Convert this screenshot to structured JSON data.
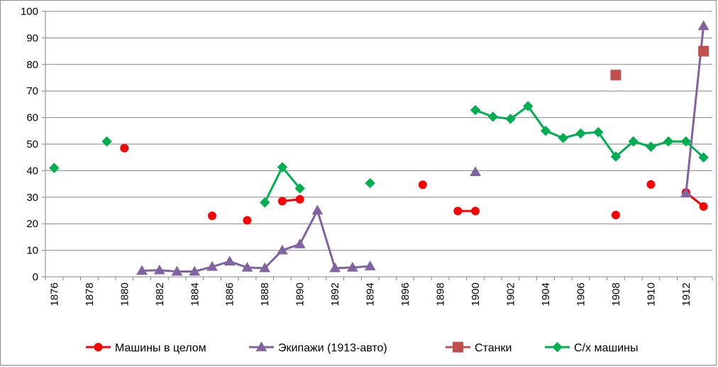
{
  "chart_data": {
    "type": "line",
    "title": "",
    "xlabel": "",
    "ylabel": "",
    "xlim": [
      1876,
      1913
    ],
    "ylim": [
      0,
      100
    ],
    "y_ticks": [
      0,
      10,
      20,
      30,
      40,
      50,
      60,
      70,
      80,
      90,
      100
    ],
    "x_tick_labels": [
      "1876",
      "1878",
      "1880",
      "1882",
      "1884",
      "1886",
      "1888",
      "1890",
      "1892",
      "1894",
      "1896",
      "1898",
      "1900",
      "1902",
      "1904",
      "1906",
      "1908",
      "1910",
      "1912"
    ],
    "grid": "horizontal",
    "legend_position": "bottom",
    "series": [
      {
        "name": "Машины в целом",
        "color": "#ff0000",
        "marker": "circle",
        "points": [
          [
            1880,
            48.5
          ],
          [
            1885,
            23
          ],
          [
            1887,
            21.3
          ],
          [
            1889,
            28.5
          ],
          [
            1890,
            29.2
          ],
          [
            1897,
            34.7
          ],
          [
            1899,
            24.8
          ],
          [
            1900,
            24.8
          ],
          [
            1908,
            23.3
          ],
          [
            1910,
            34.8
          ],
          [
            1912,
            31.8
          ],
          [
            1913,
            26.5
          ]
        ]
      },
      {
        "name": "Экипажи (1913-авто)",
        "color": "#8064a2",
        "marker": "triangle",
        "points": [
          [
            1881,
            2.3
          ],
          [
            1882,
            2.5
          ],
          [
            1883,
            2
          ],
          [
            1884,
            2
          ],
          [
            1885,
            3.8
          ],
          [
            1886,
            5.8
          ],
          [
            1887,
            3.5
          ],
          [
            1888,
            3.3
          ],
          [
            1889,
            10
          ],
          [
            1890,
            12.3
          ],
          [
            1891,
            25
          ],
          [
            1892,
            3.3
          ],
          [
            1893,
            3.5
          ],
          [
            1894,
            4
          ],
          [
            1900,
            39.5
          ],
          [
            1912,
            31.5
          ],
          [
            1913,
            94.5
          ]
        ]
      },
      {
        "name": "Станки",
        "color": "#c0504d",
        "marker": "square",
        "points": [
          [
            1908,
            76
          ],
          [
            1913,
            85
          ]
        ]
      },
      {
        "name": "С/х машины",
        "color": "#00b050",
        "marker": "diamond",
        "points": [
          [
            1876,
            41
          ],
          [
            1879,
            51
          ],
          [
            1888,
            28
          ],
          [
            1889,
            41.3
          ],
          [
            1890,
            33.3
          ],
          [
            1894,
            35.3
          ],
          [
            1900,
            62.8
          ],
          [
            1901,
            60.3
          ],
          [
            1902,
            59.5
          ],
          [
            1903,
            64.3
          ],
          [
            1904,
            55
          ],
          [
            1905,
            52.3
          ],
          [
            1906,
            54
          ],
          [
            1907,
            54.5
          ],
          [
            1908,
            45.3
          ],
          [
            1909,
            51
          ],
          [
            1910,
            49
          ],
          [
            1911,
            51
          ],
          [
            1912,
            51
          ],
          [
            1913,
            45
          ]
        ]
      }
    ]
  }
}
